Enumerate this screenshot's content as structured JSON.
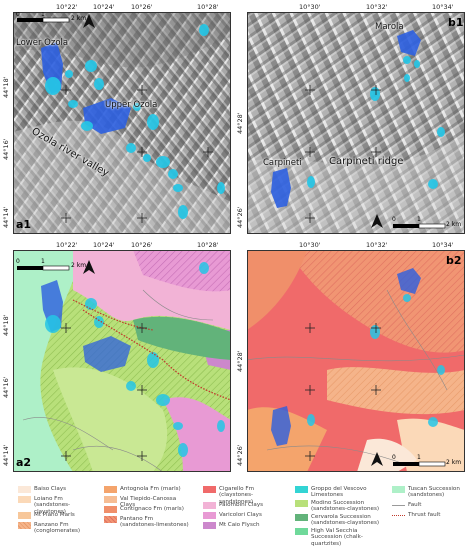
{
  "panels": {
    "a1": {
      "label": "a1",
      "lon_ticks": [
        "10°22'",
        "10°24'",
        "10°26'",
        "10°28'"
      ],
      "lat_ticks": [
        "44°18'",
        "44°16'",
        "44°14'"
      ],
      "scale": {
        "start": "0",
        "mid": "1",
        "end": "2 km"
      },
      "places": {
        "lower_ozola": "Lower Ozola",
        "upper_ozola": "Upper Ozola",
        "valley": "Ozola river valley"
      }
    },
    "b1": {
      "label": "b1",
      "lon_ticks": [
        "10°30'",
        "10°32'",
        "10°34'"
      ],
      "lat_ticks": [
        "44°28'",
        "44°26'"
      ],
      "scale": {
        "start": "0",
        "mid": "1",
        "end": "2 km"
      },
      "places": {
        "marola": "Marola",
        "carpineti": "Carpineti",
        "ridge": "Carpineti ridge"
      }
    },
    "a2": {
      "label": "a2",
      "lon_ticks": [
        "10°22'",
        "10°24'",
        "10°26'",
        "10°28'"
      ],
      "lat_ticks": [
        "44°18'",
        "44°16'",
        "44°14'"
      ],
      "scale": {
        "start": "0",
        "mid": "1",
        "end": "2 km"
      }
    },
    "b2": {
      "label": "b2",
      "lon_ticks": [
        "10°30'",
        "10°32'",
        "10°34'"
      ],
      "lat_ticks": [
        "44°28'",
        "44°26'"
      ],
      "scale": {
        "start": "0",
        "mid": "1",
        "end": "2 km"
      }
    }
  },
  "legend": [
    {
      "label": "Baiso Clays",
      "color": "#fbe8d8",
      "pattern": false
    },
    {
      "label": "Loiano Fm (sandstones-claystones)",
      "color": "#fbd9b8",
      "pattern": false
    },
    {
      "label": "Mt Piano Marls",
      "color": "#f7c79a",
      "pattern": false
    },
    {
      "label": "Ranzano Fm (conglomerates)",
      "color": "#f5b48a",
      "pattern": true
    },
    {
      "label": "Antognola Fm (marls)",
      "color": "#f4a46c",
      "pattern": false
    },
    {
      "label": "Val Tiepido-Canossa Clays",
      "color": "#f6bd94",
      "pattern": false
    },
    {
      "label": "Contignaco Fm (marls)",
      "color": "#f08f6a",
      "pattern": false
    },
    {
      "label": "Pantano Fm (sandstones-limestones)",
      "color": "#f19573",
      "pattern": true
    },
    {
      "label": "Cigarello Fm (claystones-sandstones)",
      "color": "#f06a6a",
      "pattern": false
    },
    {
      "label": "Palombini Clays",
      "color": "#f2b3d6",
      "pattern": false
    },
    {
      "label": "Varicolori Clays",
      "color": "#e89ad4",
      "pattern": false
    },
    {
      "label": "Mt Caio Flysch",
      "color": "#cc88cc",
      "pattern": false
    },
    {
      "label": "Groppo del Vescovo Limestones",
      "color": "#33d4d4",
      "pattern": false
    },
    {
      "label": "Modino Succession (sandstones-claystones)",
      "color": "#b8e07a",
      "pattern": false
    },
    {
      "label": "Cervarola Succession (sandstones-claystones)",
      "color": "#62b37a",
      "pattern": false
    },
    {
      "label": "High Val Secchia Succession (chalk-quartzites)",
      "color": "#6fd99a",
      "pattern": false
    },
    {
      "label": "Tuscan Succession (sandstones)",
      "color": "#aef0c8",
      "pattern": false
    },
    {
      "label": "Fault",
      "color": "#9a9a9a",
      "line": "solid"
    },
    {
      "label": "Thrust fault",
      "color": "#c0392b",
      "line": "dotted"
    }
  ],
  "colors": {
    "landslide_deep": "#2c5fe0",
    "landslide_shallow": "#25c6e6"
  }
}
